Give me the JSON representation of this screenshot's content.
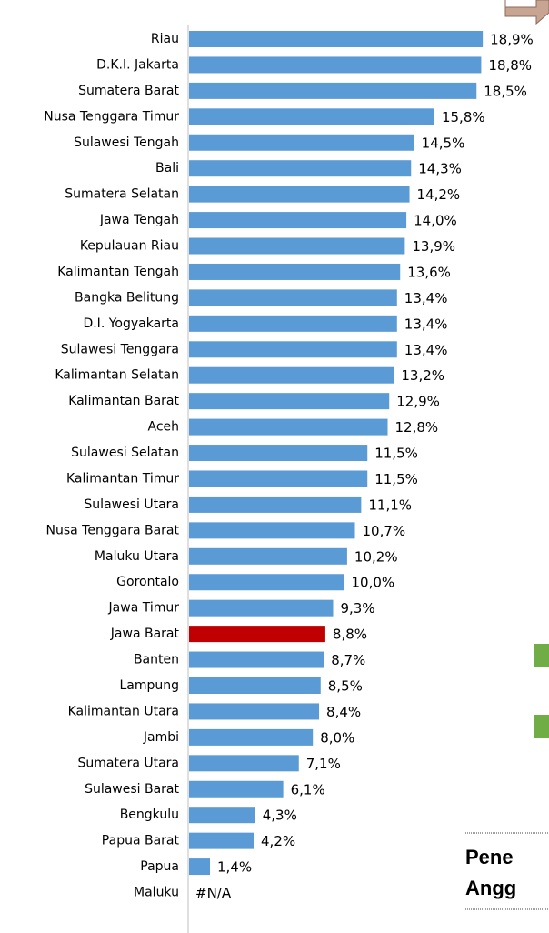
{
  "chart_data": {
    "type": "bar",
    "orientation": "horizontal",
    "categories": [
      "Riau",
      "D.K.I. Jakarta",
      "Sumatera Barat",
      "Nusa Tenggara Timur",
      "Sulawesi Tengah",
      "Bali",
      "Sumatera Selatan",
      "Jawa Tengah",
      "Kepulauan Riau",
      "Kalimantan Tengah",
      "Bangka Belitung",
      "D.I. Yogyakarta",
      "Sulawesi Tenggara",
      "Kalimantan Selatan",
      "Kalimantan Barat",
      "Aceh",
      "Sulawesi Selatan",
      "Kalimantan Timur",
      "Sulawesi Utara",
      "Nusa Tenggara Barat",
      "Maluku Utara",
      "Gorontalo",
      "Jawa Timur",
      "Jawa Barat",
      "Banten",
      "Lampung",
      "Kalimantan Utara",
      "Jambi",
      "Sumatera Utara",
      "Sulawesi Barat",
      "Bengkulu",
      "Papua Barat",
      "Papua",
      "Maluku"
    ],
    "values": [
      18.9,
      18.8,
      18.5,
      15.8,
      14.5,
      14.3,
      14.2,
      14.0,
      13.9,
      13.6,
      13.4,
      13.4,
      13.4,
      13.2,
      12.9,
      12.8,
      11.5,
      11.5,
      11.1,
      10.7,
      10.2,
      10.0,
      9.3,
      8.8,
      8.7,
      8.5,
      8.4,
      8.0,
      7.1,
      6.1,
      4.3,
      4.2,
      1.4,
      null
    ],
    "value_labels": [
      "18,9%",
      "18,8%",
      "18,5%",
      "15,8%",
      "14,5%",
      "14,3%",
      "14,2%",
      "14,0%",
      "13,9%",
      "13,6%",
      "13,4%",
      "13,4%",
      "13,4%",
      "13,2%",
      "12,9%",
      "12,8%",
      "11,5%",
      "11,5%",
      "11,1%",
      "10,7%",
      "10,2%",
      "10,0%",
      "9,3%",
      "8,8%",
      "8,7%",
      "8,5%",
      "8,4%",
      "8,0%",
      "7,1%",
      "6,1%",
      "4,3%",
      "4,2%",
      "1,4%",
      "#N/A"
    ],
    "color": "#5b9bd5",
    "highlight": {
      "index": 23,
      "color": "#c00000"
    },
    "xlim": [
      0,
      20
    ],
    "annotations": [
      "Pene",
      "Angg"
    ]
  }
}
